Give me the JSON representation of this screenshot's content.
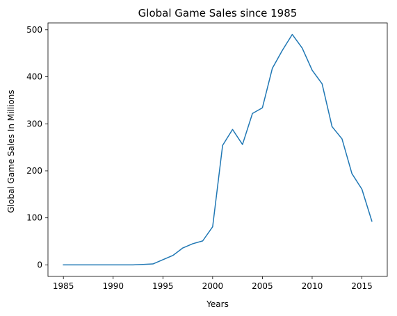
{
  "chart_data": {
    "type": "line",
    "title": "Global Game Sales since 1985",
    "xlabel": "Years",
    "ylabel": "Global Game Sales In Millions",
    "xlim": [
      1983.45,
      2017.55
    ],
    "ylim": [
      -24.5,
      514.5
    ],
    "xticks": [
      1985,
      1990,
      1995,
      2000,
      2005,
      2010,
      2015
    ],
    "yticks": [
      0,
      100,
      200,
      300,
      400,
      500
    ],
    "grid": false,
    "colors": {
      "line": "#1f77b4"
    },
    "series": [
      {
        "x": [
          1985,
          1986,
          1987,
          1988,
          1989,
          1990,
          1991,
          1992,
          1993,
          1994,
          1995,
          1996,
          1997,
          1998,
          1999,
          2000,
          2001,
          2002,
          2003,
          2004,
          2005,
          2006,
          2007,
          2008,
          2009,
          2010,
          2011,
          2012,
          2013,
          2014,
          2015,
          2016
        ],
        "y": [
          0,
          0,
          0,
          0,
          0,
          0,
          0,
          0,
          1,
          2,
          11,
          20,
          36,
          45,
          51,
          81,
          254,
          288,
          256,
          322,
          334,
          418,
          456,
          490,
          461,
          414,
          385,
          294,
          268,
          194,
          161,
          93
        ]
      }
    ]
  }
}
